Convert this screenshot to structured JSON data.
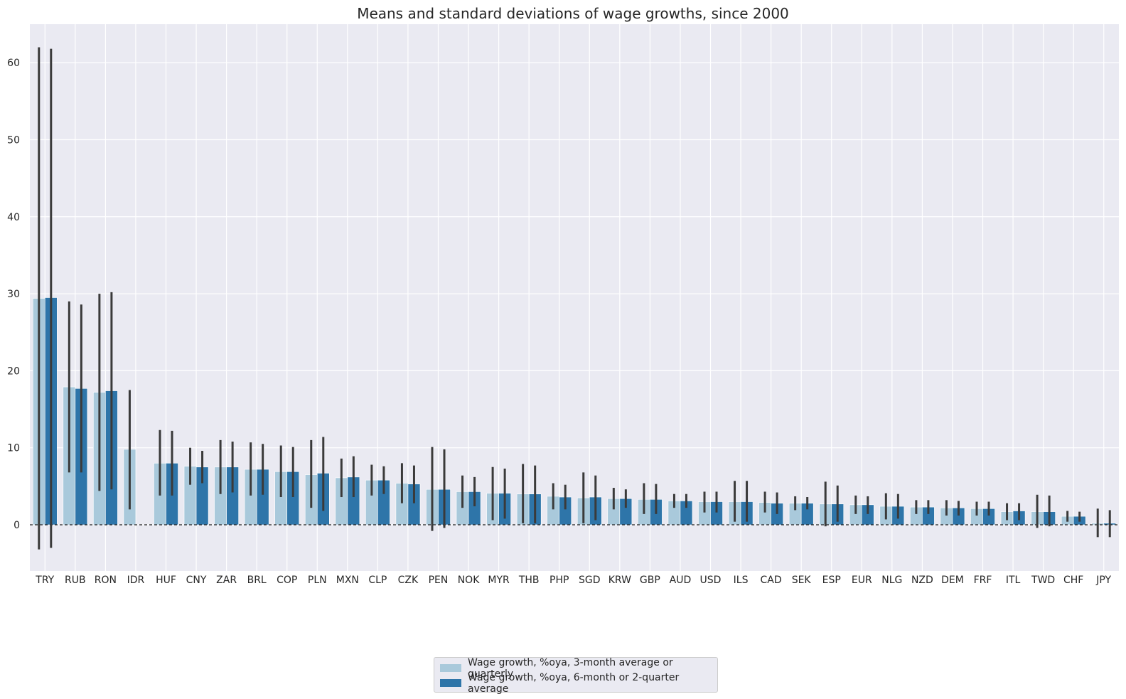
{
  "chart_data": {
    "type": "bar",
    "title": "Means and standard deviations of wage growths, since 2000",
    "xlabel": "",
    "ylabel": "",
    "ylim": [
      -6,
      65
    ],
    "yticks": [
      0,
      10,
      20,
      30,
      40,
      50,
      60
    ],
    "grid": true,
    "legend_position": "bottom-center",
    "reference_line": 0,
    "categories": [
      "TRY",
      "RUB",
      "RON",
      "IDR",
      "HUF",
      "CNY",
      "ZAR",
      "BRL",
      "COP",
      "PLN",
      "MXN",
      "CLP",
      "CZK",
      "PEN",
      "NOK",
      "MYR",
      "THB",
      "PHP",
      "SGD",
      "KRW",
      "GBP",
      "AUD",
      "USD",
      "ILS",
      "CAD",
      "SEK",
      "ESP",
      "EUR",
      "NLG",
      "NZD",
      "DEM",
      "FRF",
      "ITL",
      "TWD",
      "CHF",
      "JPY"
    ],
    "series": [
      {
        "name": "Wage growth, %oya, 3-month average or quarterly",
        "color": "#a9c9db",
        "values": [
          29.4,
          17.9,
          17.2,
          9.8,
          8.0,
          7.6,
          7.5,
          7.2,
          6.9,
          6.5,
          6.1,
          5.8,
          5.4,
          4.6,
          4.3,
          4.1,
          4.0,
          3.7,
          3.5,
          3.4,
          3.3,
          3.1,
          3.0,
          3.0,
          2.9,
          2.8,
          2.7,
          2.6,
          2.4,
          2.3,
          2.2,
          2.1,
          1.7,
          1.7,
          1.1,
          0.2
        ],
        "std_low": [
          -3.2,
          6.8,
          4.4,
          2.0,
          3.8,
          5.2,
          4.0,
          3.8,
          3.6,
          2.2,
          3.6,
          3.8,
          2.8,
          -0.8,
          2.2,
          0.6,
          0.2,
          2.0,
          0.2,
          2.0,
          1.4,
          2.2,
          1.6,
          0.4,
          1.6,
          1.9,
          -0.2,
          1.4,
          0.7,
          1.4,
          1.2,
          1.2,
          0.6,
          -0.4,
          0.4,
          -1.6
        ],
        "std_high": [
          62.0,
          29.0,
          30.0,
          17.5,
          12.3,
          10.0,
          11.0,
          10.7,
          10.3,
          11.0,
          8.6,
          7.8,
          8.0,
          10.1,
          6.4,
          7.5,
          7.9,
          5.4,
          6.8,
          4.8,
          5.4,
          4.0,
          4.3,
          5.7,
          4.3,
          3.7,
          5.6,
          3.8,
          4.1,
          3.2,
          3.2,
          3.0,
          2.8,
          3.9,
          1.8,
          2.1
        ]
      },
      {
        "name": "Wage growth, %oya, 6-month or 2-quarter average",
        "color": "#2e75a9",
        "values": [
          29.5,
          17.7,
          17.4,
          null,
          8.0,
          7.5,
          7.5,
          7.2,
          6.9,
          6.7,
          6.2,
          5.8,
          5.3,
          4.6,
          4.3,
          4.1,
          4.0,
          3.6,
          3.6,
          3.4,
          3.3,
          3.1,
          3.0,
          3.0,
          2.8,
          2.8,
          2.7,
          2.6,
          2.4,
          2.3,
          2.2,
          2.1,
          1.8,
          1.7,
          1.1,
          0.2
        ],
        "std_low": [
          -3.0,
          6.8,
          4.6,
          null,
          3.8,
          5.4,
          4.2,
          3.9,
          3.6,
          1.8,
          3.6,
          4.0,
          2.8,
          -0.4,
          2.4,
          0.8,
          0.2,
          2.0,
          0.6,
          2.2,
          1.4,
          2.2,
          1.6,
          0.4,
          1.4,
          2.0,
          0.4,
          1.4,
          0.8,
          1.4,
          1.2,
          1.2,
          0.6,
          -0.2,
          0.4,
          -1.6
        ],
        "std_high": [
          61.8,
          28.6,
          30.2,
          null,
          12.2,
          9.6,
          10.8,
          10.5,
          10.1,
          11.4,
          8.9,
          7.6,
          7.7,
          9.8,
          6.2,
          7.3,
          7.7,
          5.2,
          6.4,
          4.6,
          5.3,
          4.0,
          4.3,
          5.7,
          4.2,
          3.6,
          5.1,
          3.7,
          4.0,
          3.2,
          3.1,
          3.0,
          2.8,
          3.8,
          1.7,
          1.9
        ]
      }
    ]
  },
  "colors": {
    "plot_background": "#eaeaf2",
    "grid": "#ffffff",
    "error_bar": "#3a3a3a",
    "text": "#262626"
  }
}
